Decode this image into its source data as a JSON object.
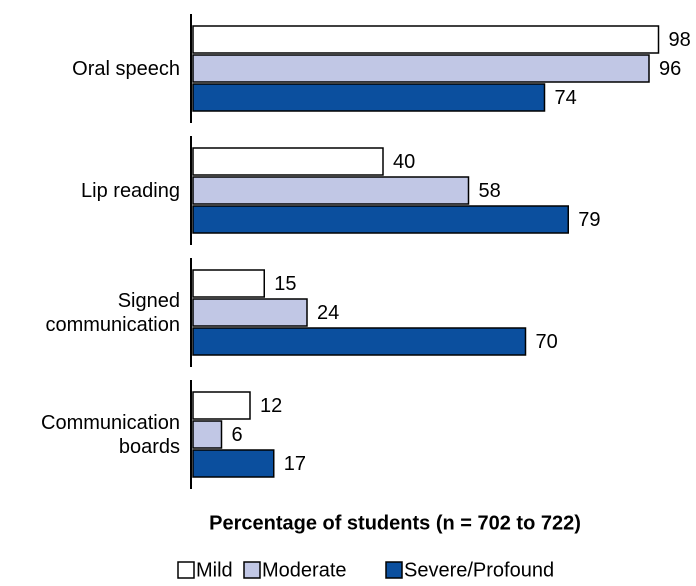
{
  "chart_data": {
    "type": "bar",
    "orientation": "horizontal",
    "x_label": "Percentage of students (n = 702 to 722)",
    "categories": [
      "Oral speech",
      "Lip reading",
      "Signed communication",
      "Communication boards"
    ],
    "series": [
      {
        "name": "Mild",
        "color": "#ffffff",
        "values": [
          98,
          40,
          15,
          12
        ]
      },
      {
        "name": "Moderate",
        "color": "#c1c7e5",
        "values": [
          96,
          58,
          24,
          6
        ]
      },
      {
        "name": "Severe/Profound",
        "color": "#0b4f9e",
        "values": [
          74,
          79,
          70,
          17
        ]
      }
    ]
  }
}
